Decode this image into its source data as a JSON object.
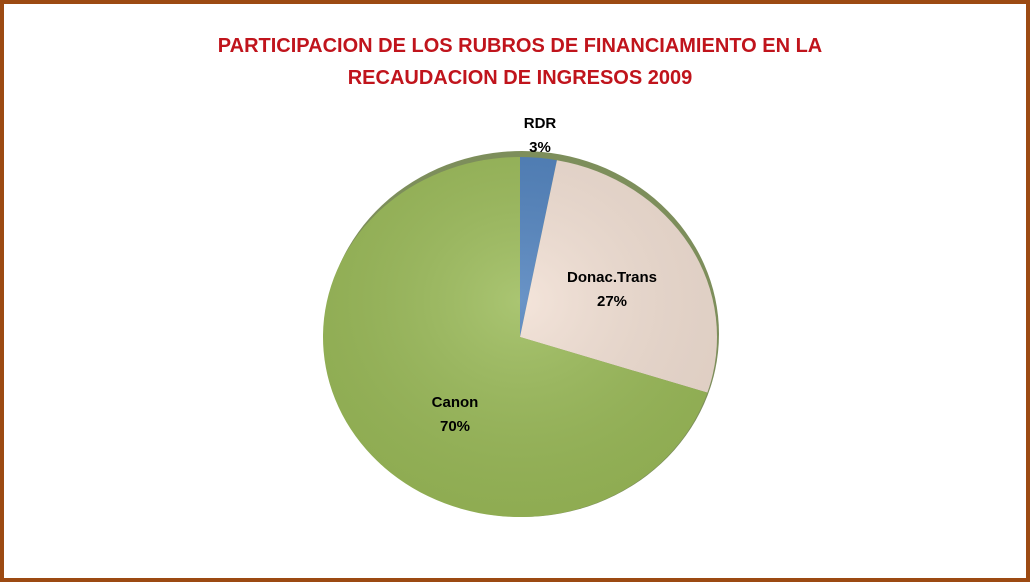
{
  "chart_data": {
    "type": "pie",
    "title": [
      "PARTICIPACION DE LOS RUBROS DE FINANCIAMIENTO EN LA",
      "RECAUDACION DE INGRESOS 2009"
    ],
    "categories": [
      "RDR",
      "Donac.Trans",
      "Canon"
    ],
    "values": [
      3,
      27,
      70
    ],
    "value_labels": [
      "3%",
      "27%",
      "70%"
    ],
    "colors": [
      "#4f81bd",
      "#f2e0d4",
      "#9bbb59"
    ]
  }
}
